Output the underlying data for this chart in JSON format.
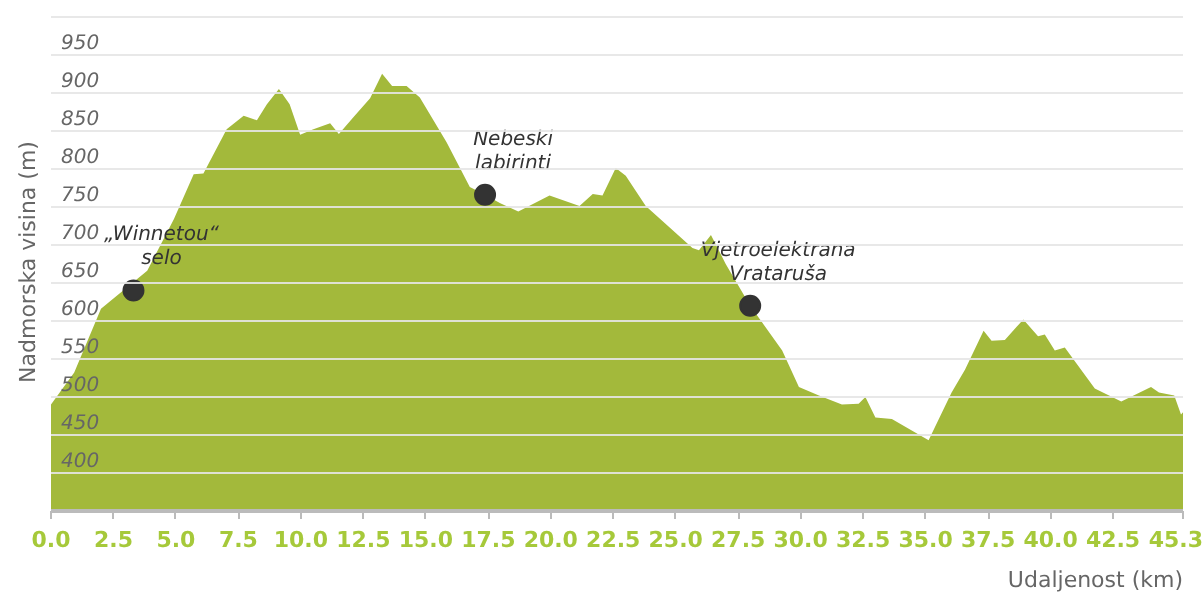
{
  "chart_data": {
    "type": "area",
    "xlabel": "Udaljenost (km)",
    "ylabel": "Nadmorska visina (m)",
    "color": "#a3b93b",
    "x": [
      0,
      0.93,
      2.0,
      3.85,
      4.92,
      5.71,
      6.1,
      7.03,
      7.71,
      8.24,
      8.64,
      9.12,
      9.55,
      9.97,
      10.5,
      11.17,
      11.52,
      12.1,
      12.77,
      13.25,
      13.65,
      14.23,
      14.76,
      15.83,
      16.76,
      17.37,
      17.96,
      18.7,
      19.95,
      21.15,
      21.68,
      22.07,
      22.6,
      23.0,
      23.8,
      25.67,
      25.93,
      26.41,
      27.0,
      27.98,
      29.26,
      29.93,
      30.73,
      31.65,
      32.32,
      32.59,
      32.99,
      33.65,
      35.12,
      36.04,
      36.58,
      37.32,
      37.64,
      38.17,
      38.91,
      39.5,
      39.77,
      40.17,
      40.57,
      41.77,
      42.83,
      44.02,
      44.34,
      44.95,
      45.22,
      45.3
    ],
    "values": [
      490,
      532,
      616,
      666,
      734,
      793,
      794,
      852,
      870,
      864,
      885,
      905,
      885,
      845,
      852,
      860,
      846,
      868,
      893,
      925,
      909,
      909,
      894,
      835,
      776,
      766,
      755,
      744,
      765,
      751,
      767,
      765,
      801,
      791,
      751,
      696,
      693,
      713,
      675,
      620,
      561,
      513,
      502,
      490,
      491,
      500,
      473,
      471,
      443,
      506,
      536,
      587,
      574,
      575,
      602,
      580,
      582,
      561,
      565,
      511,
      494,
      513,
      506,
      502,
      477,
      480
    ],
    "xlim": [
      0,
      45.3
    ],
    "ylim": [
      350,
      1005
    ],
    "xticks": [
      {
        "value": 0,
        "label": "0.0"
      },
      2.5,
      {
        "value": 5,
        "label": "5.0"
      },
      7.5,
      {
        "value": 10,
        "label": "10.0"
      },
      12.5,
      {
        "value": 15,
        "label": "15.0"
      },
      17.5,
      {
        "value": 20,
        "label": "20.0"
      },
      22.5,
      {
        "value": 25,
        "label": "25.0"
      },
      27.5,
      {
        "value": 30,
        "label": "30.0"
      },
      32.5,
      {
        "value": 35,
        "label": "35.0"
      },
      37.5,
      {
        "value": 40,
        "label": "40.0"
      },
      42.5,
      45.3
    ],
    "yticks": [
      400,
      450,
      500,
      550,
      600,
      650,
      700,
      750,
      800,
      850,
      900,
      950,
      {
        "value": 1000,
        "label": null
      }
    ],
    "grid": "y",
    "annotations": [
      {
        "text": "„Winnetou“\nselo",
        "x": 3.3,
        "y": 640
      },
      {
        "text": "Nebeski\nlabirinti",
        "x": 17.37,
        "y": 766
      },
      {
        "text": "Vjetroelektrana\nVrataruša",
        "x": 27.98,
        "y": 620
      }
    ]
  }
}
